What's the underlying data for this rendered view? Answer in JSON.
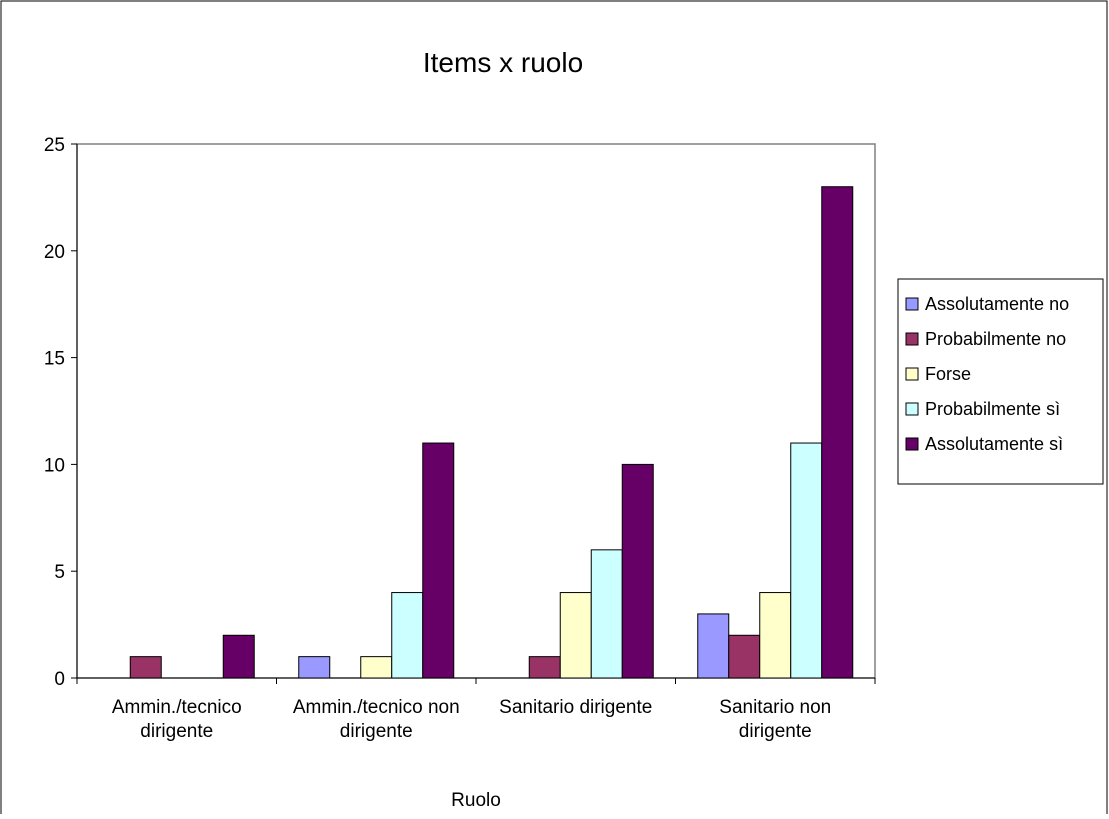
{
  "chart_data": {
    "type": "bar",
    "title": "Items x ruolo",
    "xlabel": "Ruolo",
    "ylabel": "",
    "ylim": [
      0,
      25
    ],
    "yticks": [
      0,
      5,
      10,
      15,
      20,
      25
    ],
    "grid": false,
    "legend_position": "right",
    "categories": [
      [
        "Ammin./tecnico",
        "dirigente"
      ],
      [
        "Ammin./tecnico non",
        "dirigente"
      ],
      [
        "Sanitario dirigente"
      ],
      [
        "Sanitario non",
        "dirigente"
      ]
    ],
    "series": [
      {
        "name": "Assolutamente no",
        "color": "#9999ff",
        "values": [
          0,
          1,
          0,
          3
        ]
      },
      {
        "name": "Probabilmente no",
        "color": "#993366",
        "values": [
          1,
          0,
          1,
          2
        ]
      },
      {
        "name": "Forse",
        "color": "#ffffcc",
        "values": [
          0,
          1,
          4,
          4
        ]
      },
      {
        "name": "Probabilmente sì",
        "color": "#ccffff",
        "values": [
          0,
          4,
          6,
          11
        ]
      },
      {
        "name": "Assolutamente sì",
        "color": "#660066",
        "values": [
          2,
          11,
          10,
          23
        ]
      }
    ]
  }
}
